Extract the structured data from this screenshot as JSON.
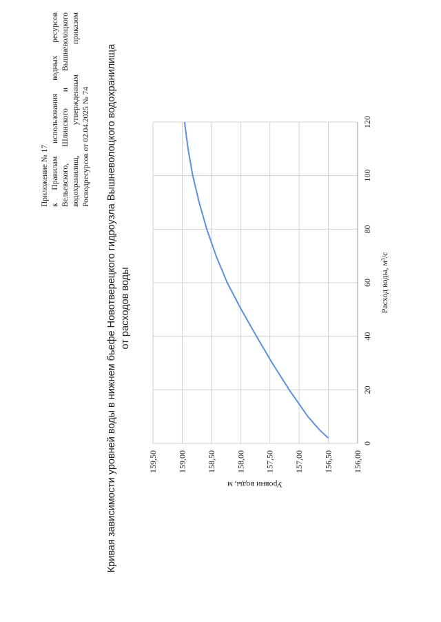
{
  "header": {
    "lines": [
      "Приложение № 17",
      "к Правилам использования водных ресурсов",
      "Вельевского, Шлинского и Вышневолоцкого",
      "водохранилищ, утвержденным приказом",
      "Росводресурсов от 02.04.2025 № 74"
    ]
  },
  "chart_data": {
    "type": "line",
    "title": "Кривая зависимости уровней воды в нижнем бьефе Новотверецкого гидроузла Вышневолоцкого водохранилища",
    "subtitle": "от расходов воды",
    "x_label": "Расход воды, м³/с",
    "y_label": "Уровни воды, м",
    "x": [
      2,
      5,
      10,
      20,
      30,
      40,
      50,
      60,
      70,
      80,
      90,
      100,
      110,
      120
    ],
    "series": [
      {
        "color": "#5b8ee6",
        "values": [
          156.5,
          156.65,
          156.85,
          157.17,
          157.46,
          157.73,
          157.99,
          158.23,
          158.42,
          158.58,
          158.71,
          158.82,
          158.9,
          158.96
        ]
      }
    ],
    "xlim": [
      0,
      120
    ],
    "xticks": [
      0,
      20,
      40,
      60,
      80,
      100,
      120
    ],
    "ylim": [
      156,
      159.5
    ],
    "yticks": [
      {
        "value": 156,
        "label": "156,00"
      },
      {
        "value": 156.5,
        "label": "156,50"
      },
      {
        "value": 157,
        "label": "157,00"
      },
      {
        "value": 157.5,
        "label": "157,50"
      },
      {
        "value": 158,
        "label": "158,00"
      },
      {
        "value": 158.5,
        "label": "158,50"
      },
      {
        "value": 159,
        "label": "159,00"
      },
      {
        "value": 159.5,
        "label": "159,50"
      }
    ],
    "grid": true
  }
}
